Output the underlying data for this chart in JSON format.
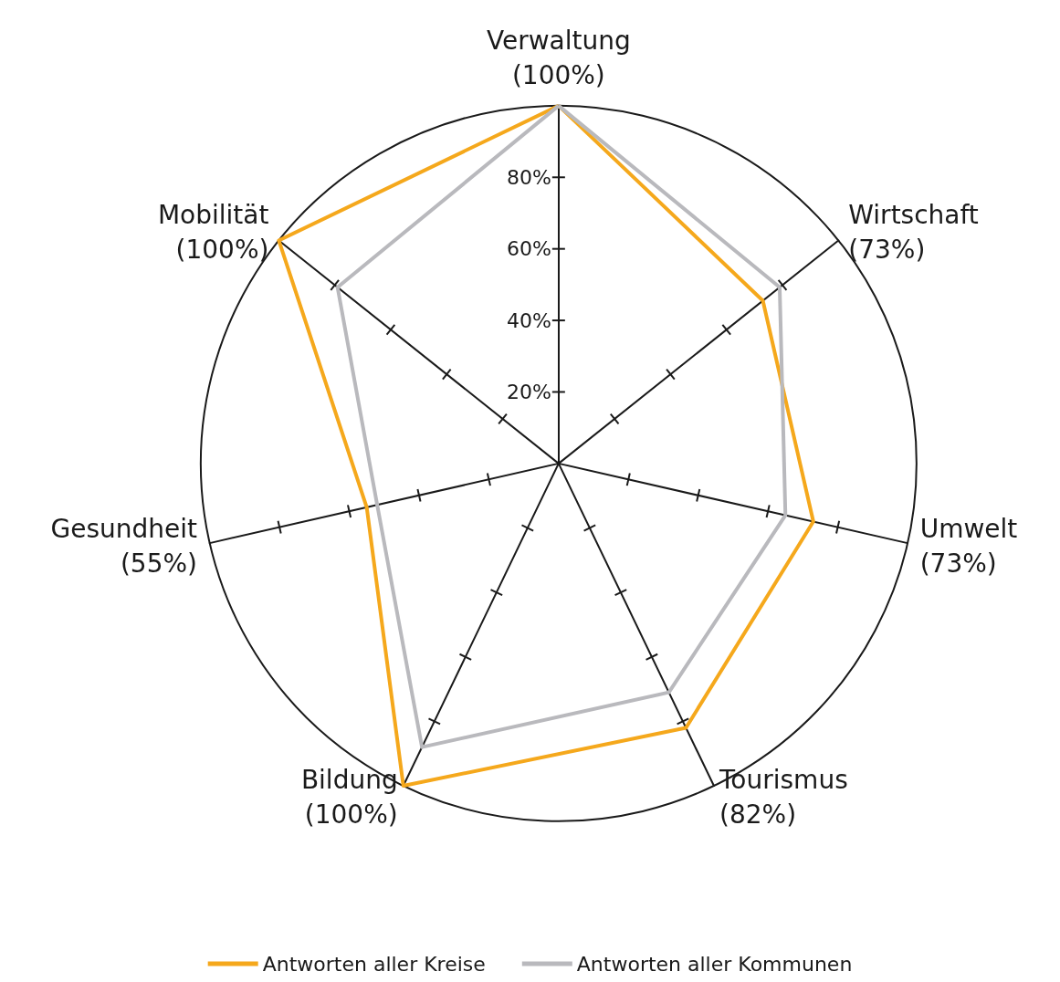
{
  "chart_data": {
    "type": "radar",
    "categories": [
      "Verwaltung\n(100%)",
      "Wirtschaft\n(73%)",
      "Umwelt\n(73%)",
      "Tourismus\n(82%)",
      "Bildung\n(100%)",
      "Gesundheit\n(55%)",
      "Mobilität\n(100%)"
    ],
    "series": [
      {
        "name": "Antworten aller Kreise",
        "color": "#f5a81c",
        "values": [
          100,
          73,
          73,
          82,
          100,
          55,
          100
        ]
      },
      {
        "name": "Antworten aller Kommunen",
        "color": "#b9b9bd",
        "values": [
          100,
          79,
          65,
          71,
          88,
          52,
          79
        ]
      }
    ],
    "ylim": [
      0,
      100
    ],
    "yticks": [
      {
        "value": 20,
        "label": "20%"
      },
      {
        "value": 40,
        "label": "40%"
      },
      {
        "value": 60,
        "label": "60%"
      },
      {
        "value": 80,
        "label": "80%"
      }
    ],
    "legend": "bottom",
    "marker": "none",
    "line_style": "solid"
  }
}
